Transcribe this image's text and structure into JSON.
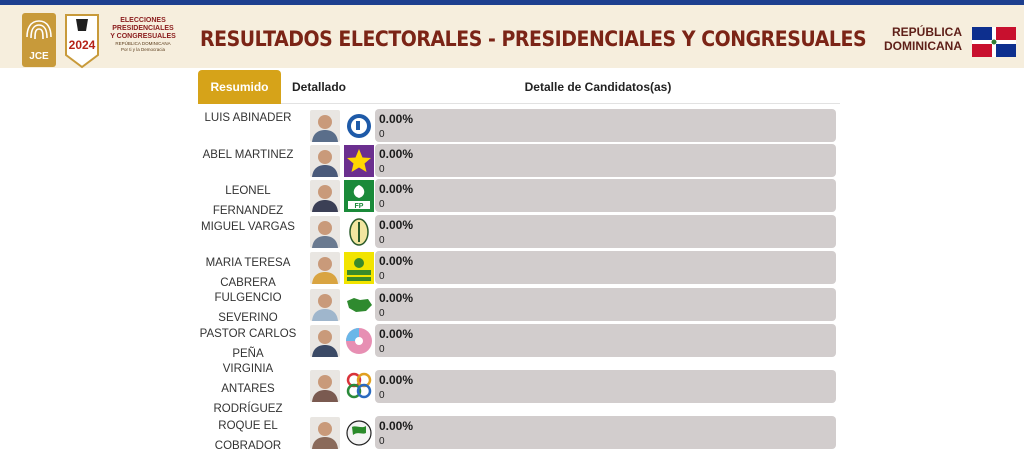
{
  "header": {
    "logo_text": "JCE",
    "year_text": "2024",
    "elections_label_1": "ELECCIONES",
    "elections_label_2": "PRESIDENCIALES",
    "elections_label_3": "Y CONGRESUALES",
    "elections_sub_1": "REPÚBLICA DOMINICANA",
    "elections_sub_2": "Por ti y la Democracia",
    "title": "RESULTADOS ELECTORALES - PRESIDENCIALES Y CONGRESUALES",
    "country_line_1": "REPÚBLICA",
    "country_line_2": "DOMINICANA"
  },
  "tabs": {
    "resumido": "Resumido",
    "detallado": "Detallado",
    "detalle_candidatos": "Detalle de Candidatos(as)"
  },
  "candidates": [
    {
      "name_lines": [
        "LUIS ABINADER"
      ],
      "percent": "0.00%",
      "votes": "0",
      "party_icon": "prm-logo-icon"
    },
    {
      "name_lines": [
        "ABEL MARTINEZ"
      ],
      "percent": "0.00%",
      "votes": "0",
      "party_icon": "pld-star-icon"
    },
    {
      "name_lines": [
        "LEONEL",
        "FERNANDEZ"
      ],
      "percent": "0.00%",
      "votes": "0",
      "party_icon": "fp-logo-icon"
    },
    {
      "name_lines": [
        "MIGUEL VARGAS"
      ],
      "percent": "0.00%",
      "votes": "0",
      "party_icon": "prd-logo-icon"
    },
    {
      "name_lines": [
        "MARIA TERESA",
        "CABRERA"
      ],
      "percent": "0.00%",
      "votes": "0",
      "party_icon": "frente-amplio-logo-icon"
    },
    {
      "name_lines": [
        "FULGENCIO",
        "SEVERINO"
      ],
      "percent": "0.00%",
      "votes": "0",
      "party_icon": "ppc-map-logo-icon"
    },
    {
      "name_lines": [
        "PASTOR CARLOS",
        "PEÑA"
      ],
      "percent": "0.00%",
      "votes": "0",
      "party_icon": "generacion-logo-icon"
    },
    {
      "name_lines": [
        "VIRGINIA",
        "ANTARES",
        "RODRÍGUEZ"
      ],
      "percent": "0.00%",
      "votes": "0",
      "party_icon": "opcion-logo-icon"
    },
    {
      "name_lines": [
        "ROQUE EL",
        "COBRADOR"
      ],
      "percent": "0.00%",
      "votes": "0",
      "party_icon": "globe-logo-icon"
    }
  ],
  "colors": {
    "accent": "#d6a319",
    "header_bg": "#f6eedd",
    "title": "#7b2416",
    "bar": "#d2cdcd",
    "topbar": "#1d3f8f"
  }
}
